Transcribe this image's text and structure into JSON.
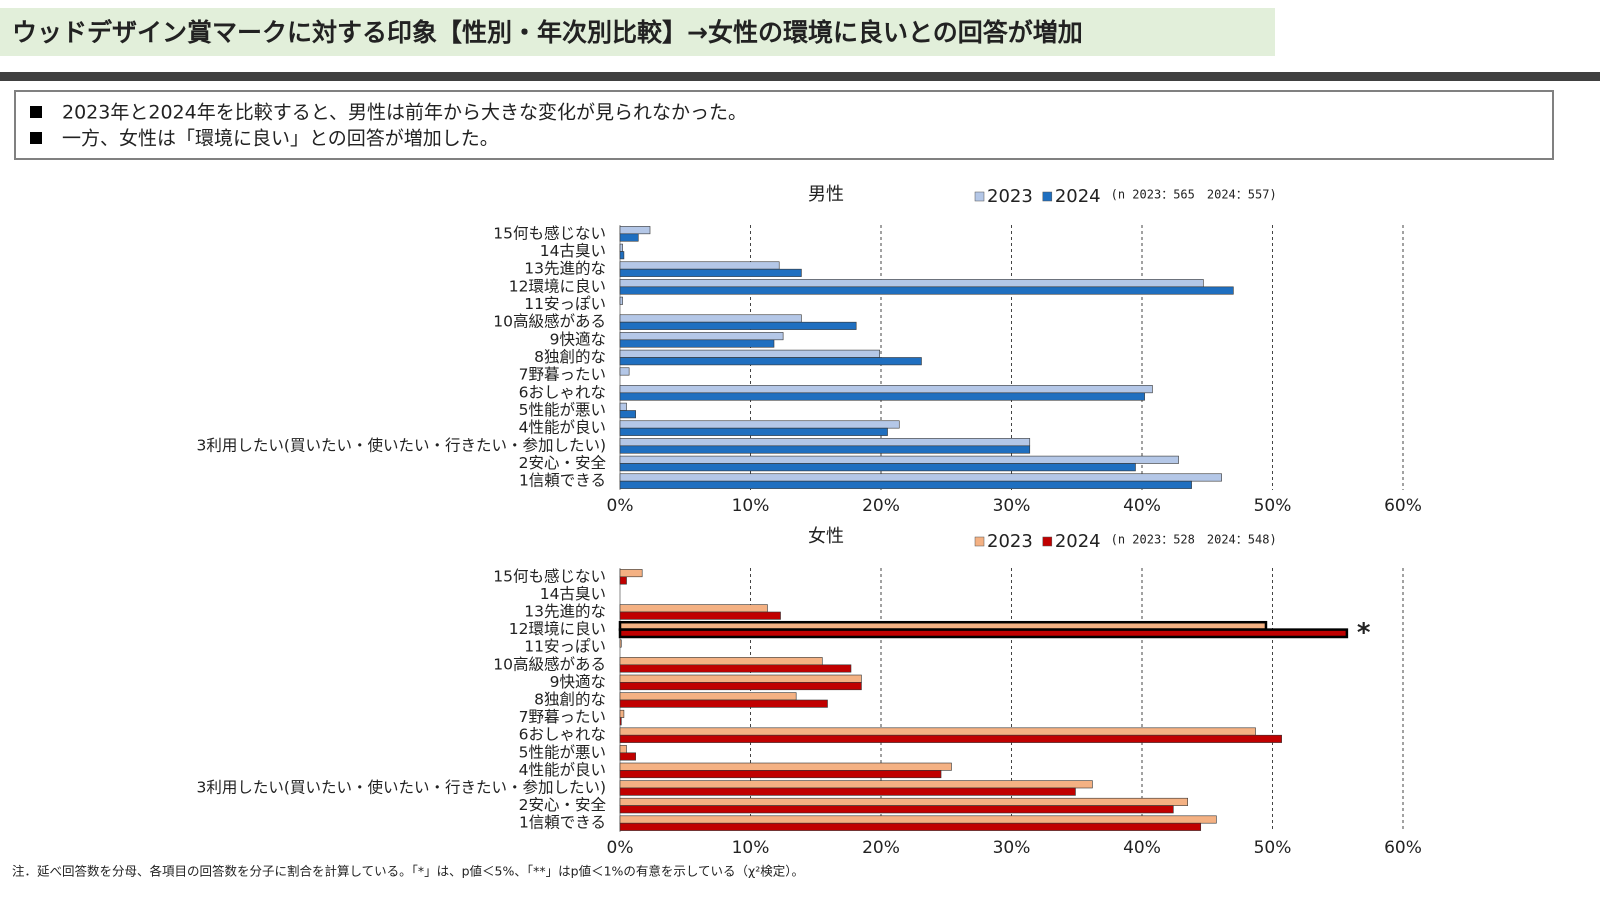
{
  "header": {
    "title": "ウッドデザイン賞マークに対する印象【性別・年次別比較】→女性の環境に良いとの回答が増加"
  },
  "bullets": [
    "2023年と2024年を比較すると、男性は前年から大きな変化が見られなかった。",
    "一方、女性は「環境に良い」との回答が増加した。"
  ],
  "footnote": "注．延べ回答数を分母、各項目の回答数を分子に割合を計算している。「*」は、p値＜5%、「**」はp値＜1%の有意を示している（χ²検定）。",
  "chart_data": [
    {
      "type": "bar",
      "orientation": "horizontal",
      "title": "男性",
      "note": "(n 2023：565　2024：557)",
      "categories": [
        "15何も感じない",
        "14古臭い",
        "13先進的な",
        "12環境に良い",
        "11安っぽい",
        "10高級感がある",
        "9快適な",
        "8独創的な",
        "7野暮ったい",
        "6おしゃれな",
        "5性能が悪い",
        "4性能が良い",
        "3利用したい(買いたい・使いたい・行きたい・参加したい)",
        "2安心・安全",
        "1信頼できる"
      ],
      "series": [
        {
          "name": "2023",
          "color": "#b4c7e7",
          "values": [
            2.3,
            0.2,
            12.2,
            44.7,
            0.2,
            13.9,
            12.5,
            19.9,
            0.7,
            40.8,
            0.5,
            21.4,
            31.4,
            42.8,
            46.1
          ]
        },
        {
          "name": "2024",
          "color": "#1f6fc0",
          "values": [
            1.4,
            0.3,
            13.9,
            47.0,
            0,
            18.1,
            11.8,
            23.1,
            0,
            40.2,
            1.2,
            20.5,
            31.4,
            39.5,
            43.8
          ]
        }
      ],
      "xlim": [
        0,
        60
      ],
      "xticks": [
        {
          "value": 0,
          "label": "0%"
        },
        {
          "value": 10,
          "label": "10%"
        },
        {
          "value": 20,
          "label": "20%"
        },
        {
          "value": 30,
          "label": "30%"
        },
        {
          "value": 40,
          "label": "40%"
        },
        {
          "value": 50,
          "label": "50%"
        },
        {
          "value": 60,
          "label": "60%"
        }
      ],
      "grid": true
    },
    {
      "type": "bar",
      "orientation": "horizontal",
      "title": "女性",
      "note": "(n 2023：528　2024：548)",
      "categories": [
        "15何も感じない",
        "14古臭い",
        "13先進的な",
        "12環境に良い",
        "11安っぽい",
        "10高級感がある",
        "9快適な",
        "8独創的な",
        "7野暮ったい",
        "6おしゃれな",
        "5性能が悪い",
        "4性能が良い",
        "3利用したい(買いたい・使いたい・行きたい・参加したい)",
        "2安心・安全",
        "1信頼できる"
      ],
      "series": [
        {
          "name": "2023",
          "color": "#f4b183",
          "values": [
            1.7,
            0,
            11.3,
            49.5,
            0.1,
            15.5,
            18.5,
            13.5,
            0.3,
            48.7,
            0.5,
            25.4,
            36.2,
            43.5,
            45.7
          ]
        },
        {
          "name": "2024",
          "color": "#c00000",
          "values": [
            0.5,
            0,
            12.3,
            55.7,
            0,
            17.7,
            18.5,
            15.9,
            0.1,
            50.7,
            1.2,
            24.6,
            34.9,
            42.4,
            44.5
          ]
        }
      ],
      "xlim": [
        0,
        60
      ],
      "xticks": [
        {
          "value": 0,
          "label": "0%"
        },
        {
          "value": 10,
          "label": "10%"
        },
        {
          "value": 20,
          "label": "20%"
        },
        {
          "value": 30,
          "label": "30%"
        },
        {
          "value": 40,
          "label": "40%"
        },
        {
          "value": 50,
          "label": "50%"
        },
        {
          "value": 60,
          "label": "60%"
        }
      ],
      "grid": true,
      "annotation": {
        "text": "*",
        "category": "12環境に良い"
      }
    }
  ]
}
